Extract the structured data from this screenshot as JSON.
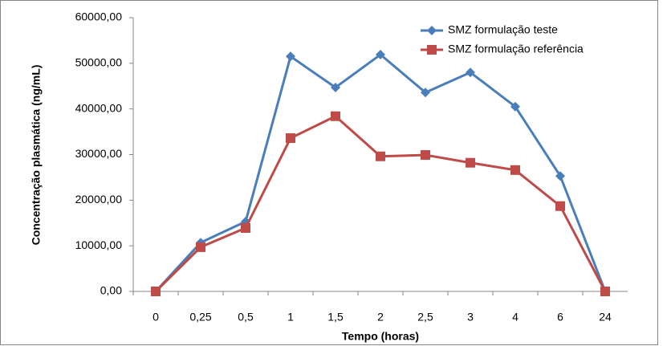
{
  "chart_data": {
    "type": "line",
    "x_label": "Tempo (horas)",
    "y_label": "Concentração plasmática (ng/mL)",
    "categories": [
      "0",
      "0,25",
      "0,5",
      "1",
      "1,5",
      "2",
      "2,5",
      "3",
      "4",
      "6",
      "24"
    ],
    "series": [
      {
        "name": "SMZ formulação teste",
        "color": "#4a7ebb",
        "marker": "diamond",
        "values": [
          0,
          10700,
          15300,
          51500,
          44700,
          51900,
          43600,
          48000,
          40500,
          25300,
          0
        ]
      },
      {
        "name": "SMZ formulação referência",
        "color": "#be4b48",
        "marker": "square",
        "values": [
          0,
          9700,
          13900,
          33600,
          38400,
          29600,
          29900,
          28200,
          26600,
          18700,
          0
        ]
      }
    ],
    "ylim": [
      0,
      60000
    ],
    "yticks": [
      {
        "value": 0,
        "label": "0,00"
      },
      {
        "value": 10000,
        "label": "10000,00"
      },
      {
        "value": 20000,
        "label": "20000,00"
      },
      {
        "value": 30000,
        "label": "30000,00"
      },
      {
        "value": 40000,
        "label": "40000,00"
      },
      {
        "value": 50000,
        "label": "50000,00"
      },
      {
        "value": 60000,
        "label": "60000,00"
      }
    ],
    "grid": false,
    "legend_position": "top-right"
  }
}
